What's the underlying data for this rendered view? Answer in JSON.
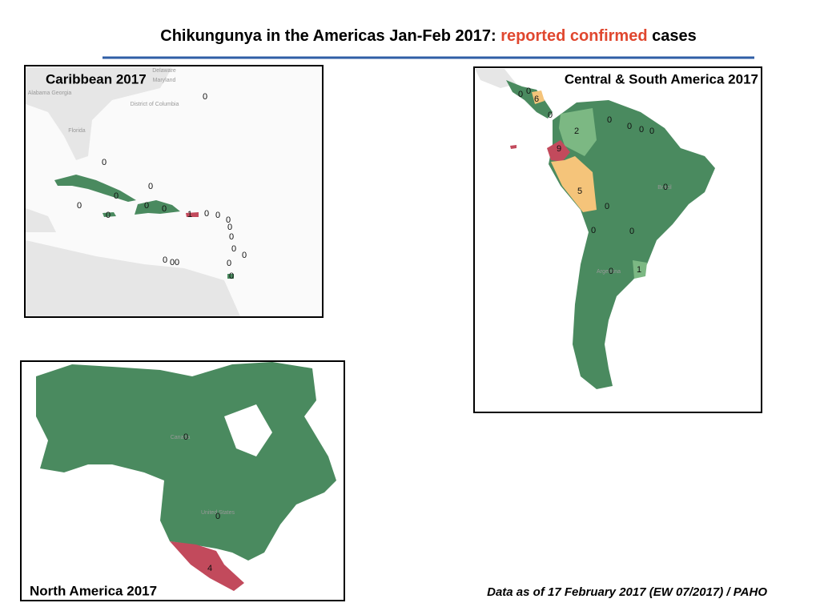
{
  "header": {
    "title_start": "Chikungunya in the Americas Jan-Feb 2017:",
    "title_highlight": "reported confirmed",
    "title_end": "cases"
  },
  "caribbean": {
    "title": "Caribbean 2017",
    "basemap_labels": [
      "Delaware",
      "Maryland",
      "District of Columbia",
      "Alabama Georgia",
      "Florida"
    ],
    "labels": [
      0,
      0,
      0,
      0,
      0,
      0,
      0,
      0,
      1,
      0,
      0,
      0,
      0,
      0,
      0,
      0,
      0,
      0,
      0,
      0,
      0
    ]
  },
  "central_south_america": {
    "title": "Central & South America 2017",
    "basemap_labels": [
      "Brazil",
      "Argentina"
    ],
    "labels": [
      0,
      0,
      6,
      0,
      2,
      0,
      0,
      0,
      0,
      9,
      5,
      0,
      0,
      0,
      0,
      0,
      1
    ]
  },
  "north_america": {
    "title": "North America 2017",
    "basemap_labels": [
      "Canada",
      "United States"
    ],
    "labels": [
      0,
      0,
      4
    ]
  },
  "footer": {
    "source": "Data as of 17 February 2017 (EW 07/2017) / PAHO"
  }
}
